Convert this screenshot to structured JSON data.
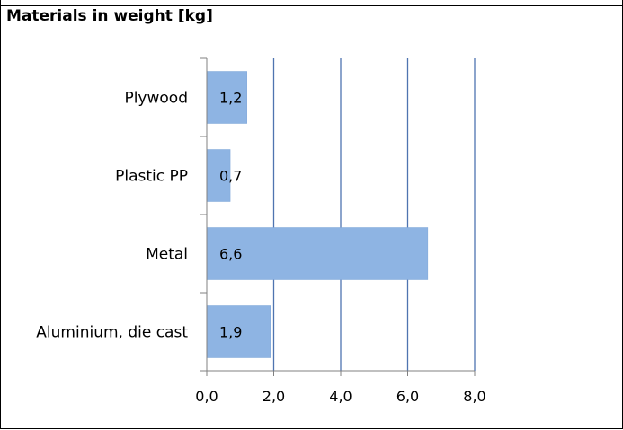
{
  "chart_data": {
    "type": "bar",
    "orientation": "horizontal",
    "title": "Materials in weight [kg]",
    "categories": [
      "Plywood",
      "Plastic PP",
      "Metal",
      "Aluminium, die cast"
    ],
    "values": [
      1.2,
      0.7,
      6.6,
      1.9
    ],
    "data_labels": [
      "1,2",
      "0,7",
      "6,6",
      "1,9"
    ],
    "xlim": [
      0,
      8
    ],
    "x_ticks": [
      0,
      2,
      4,
      6,
      8
    ],
    "x_tick_labels": [
      "0,0",
      "2,0",
      "4,0",
      "6,0",
      "8,0"
    ],
    "xlabel": "",
    "ylabel": "",
    "grid": "vertical",
    "legend": "none",
    "colors": {
      "bar": "#8eb4e3",
      "bar_edge": "#7ea6d8",
      "grid": "#4f74b0",
      "axis": "#808080"
    }
  }
}
